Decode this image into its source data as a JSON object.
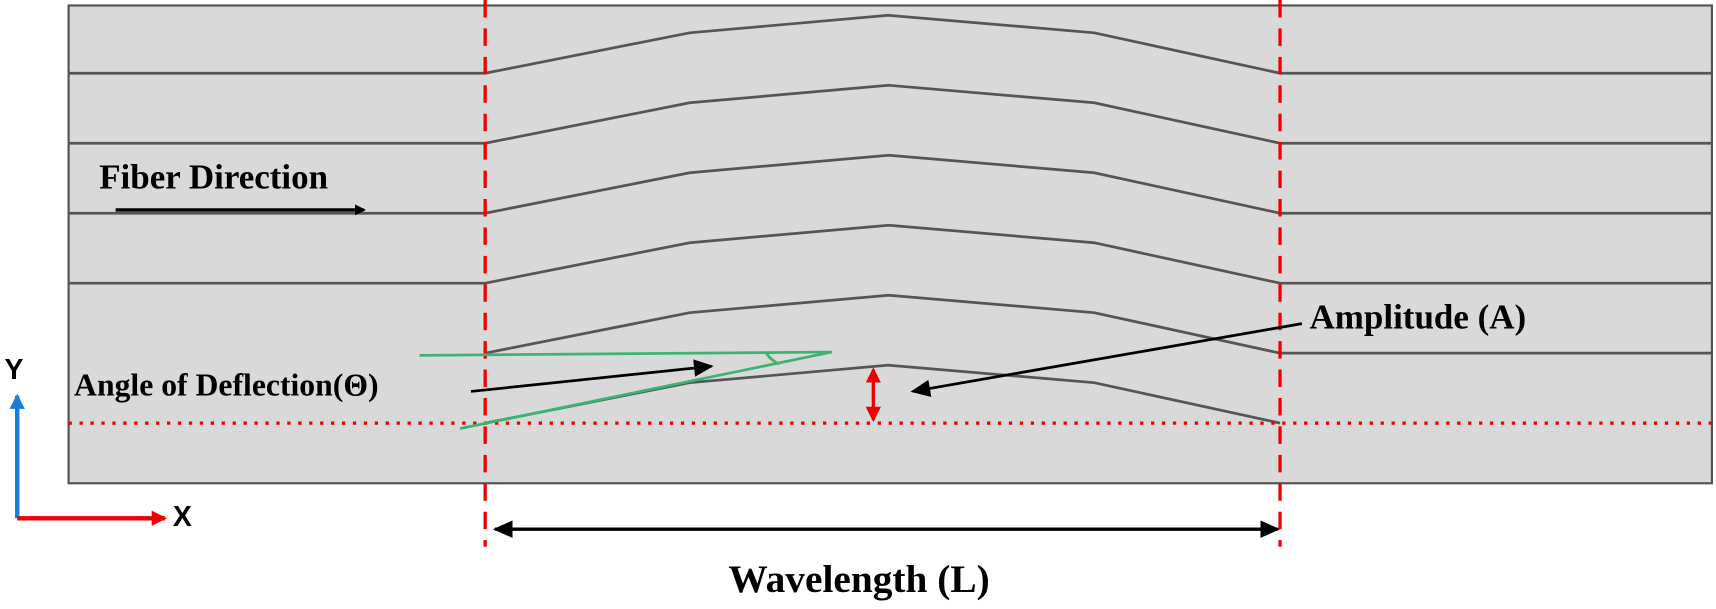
{
  "labels": {
    "fiber_direction": "Fiber Direction",
    "amplitude": "Amplitude (A)",
    "angle": "Angle of Deflection(Θ)",
    "wavelength": "Wavelength (L)",
    "axis_y": "Y",
    "axis_x": "X"
  }
}
